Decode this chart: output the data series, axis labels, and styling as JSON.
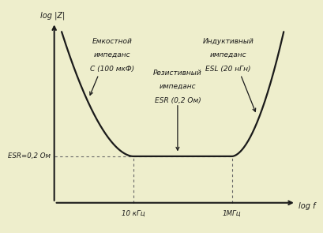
{
  "background_color": "#eeeecc",
  "curve_color": "#1a1a1a",
  "dashed_color": "#666666",
  "arrow_color": "#1a1a1a",
  "text_color": "#1a1a1a",
  "ylabel": "log |Z|",
  "xlabel": "log f",
  "esr_label": "ESR=0,2 Ом",
  "freq1_label": "10 кГц",
  "freq2_label": "1МГц",
  "label_capacitive_line1": "Емкостной",
  "label_capacitive_line2": "импеданс",
  "label_capacitive_line3": "C (100 мкФ)",
  "label_inductive_line1": "Индуктивный",
  "label_inductive_line2": "импеданс",
  "label_inductive_line3": "ESL (20 нГн)",
  "label_resistive_line1": "Резистивный",
  "label_resistive_line2": "импеданс",
  "label_resistive_line3": "ESR (0,2 Ом)"
}
